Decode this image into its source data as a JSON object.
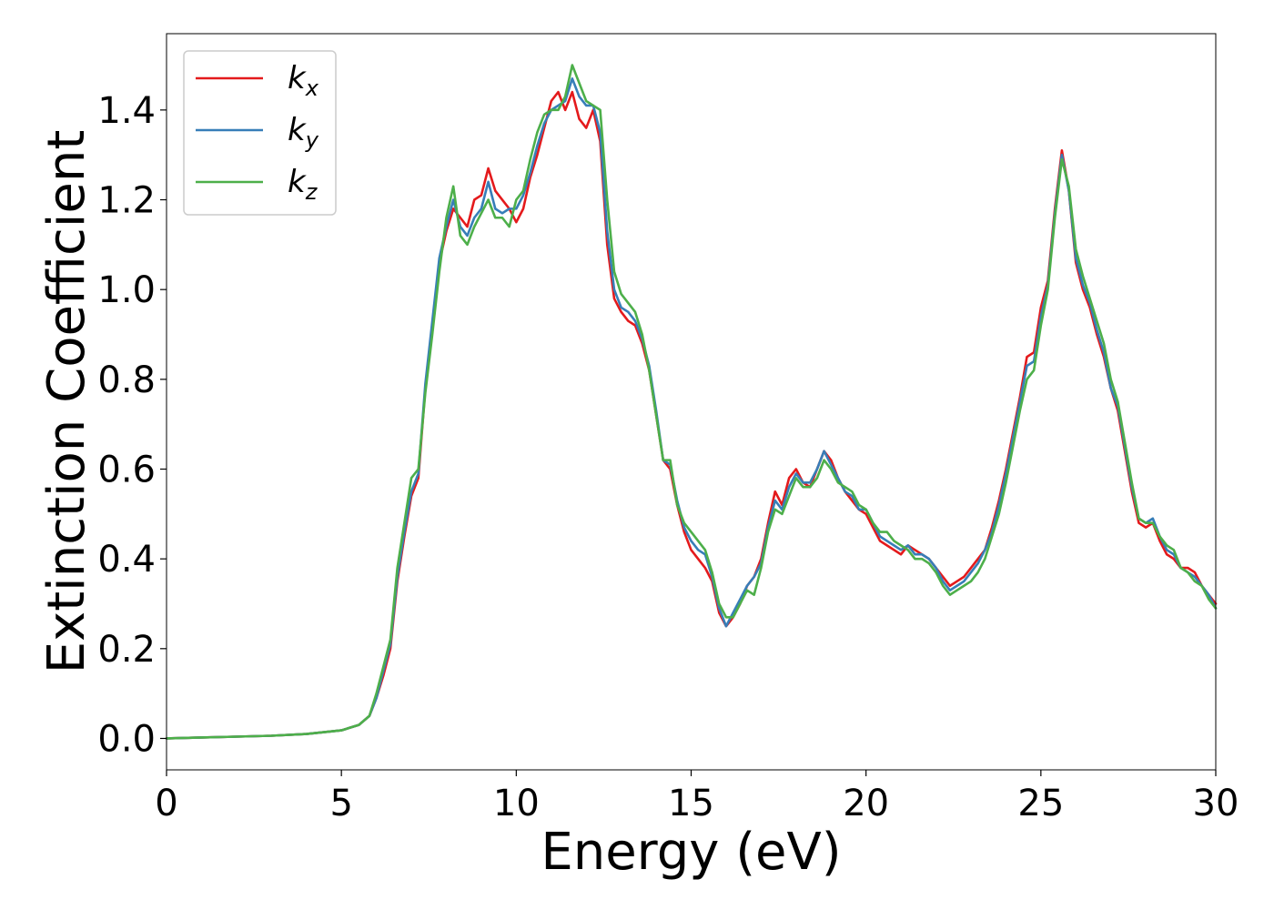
{
  "chart_data": {
    "type": "line",
    "title": "",
    "xlabel": "Energy (eV)",
    "ylabel": "Extinction Coefficient",
    "xlim": [
      0,
      30
    ],
    "ylim": [
      -0.07,
      1.57
    ],
    "xticks": [
      0,
      5,
      10,
      15,
      20,
      25,
      30
    ],
    "xtick_labels": [
      "0",
      "5",
      "10",
      "15",
      "20",
      "25",
      "30"
    ],
    "yticks": [
      0.0,
      0.2,
      0.4,
      0.6,
      0.8,
      1.0,
      1.2,
      1.4
    ],
    "ytick_labels": [
      "0.0",
      "0.2",
      "0.4",
      "0.6",
      "0.8",
      "1.0",
      "1.2",
      "1.4"
    ],
    "grid": false,
    "legend_position": "top-left",
    "series": [
      {
        "name": "k_x",
        "label_main": "k",
        "label_sub": "x",
        "color": "#e41a1c",
        "x": [
          0,
          1,
          2,
          3,
          4,
          5,
          5.5,
          5.8,
          6.0,
          6.2,
          6.4,
          6.6,
          6.8,
          7.0,
          7.2,
          7.4,
          7.6,
          7.8,
          8.0,
          8.2,
          8.4,
          8.6,
          8.8,
          9.0,
          9.2,
          9.4,
          9.6,
          9.8,
          10.0,
          10.2,
          10.4,
          10.6,
          10.8,
          11.0,
          11.2,
          11.4,
          11.6,
          11.8,
          12.0,
          12.2,
          12.4,
          12.6,
          12.8,
          13.0,
          13.2,
          13.4,
          13.6,
          13.8,
          14.0,
          14.2,
          14.4,
          14.6,
          14.8,
          15.0,
          15.2,
          15.4,
          15.6,
          15.8,
          16.0,
          16.2,
          16.4,
          16.6,
          16.8,
          17.0,
          17.2,
          17.4,
          17.6,
          17.8,
          18.0,
          18.2,
          18.4,
          18.6,
          18.8,
          19.0,
          19.2,
          19.4,
          19.6,
          19.8,
          20.0,
          20.2,
          20.4,
          20.6,
          20.8,
          21.0,
          21.2,
          21.4,
          21.6,
          21.8,
          22.0,
          22.2,
          22.4,
          22.6,
          22.8,
          23.0,
          23.2,
          23.4,
          23.6,
          23.8,
          24.0,
          24.2,
          24.4,
          24.6,
          24.8,
          25.0,
          25.2,
          25.4,
          25.6,
          25.8,
          26.0,
          26.2,
          26.4,
          26.6,
          26.8,
          27.0,
          27.2,
          27.4,
          27.6,
          27.8,
          28.0,
          28.2,
          28.4,
          28.6,
          28.8,
          29.0,
          29.2,
          29.4,
          29.6,
          29.8,
          30.0
        ],
        "y": [
          0.0,
          0.002,
          0.004,
          0.006,
          0.01,
          0.018,
          0.03,
          0.05,
          0.09,
          0.14,
          0.2,
          0.35,
          0.45,
          0.54,
          0.58,
          0.78,
          0.92,
          1.06,
          1.13,
          1.18,
          1.16,
          1.14,
          1.2,
          1.21,
          1.27,
          1.22,
          1.2,
          1.18,
          1.15,
          1.18,
          1.25,
          1.3,
          1.36,
          1.42,
          1.44,
          1.4,
          1.44,
          1.38,
          1.36,
          1.4,
          1.33,
          1.1,
          0.98,
          0.95,
          0.93,
          0.92,
          0.88,
          0.82,
          0.72,
          0.62,
          0.6,
          0.52,
          0.46,
          0.42,
          0.4,
          0.38,
          0.35,
          0.28,
          0.25,
          0.27,
          0.3,
          0.34,
          0.36,
          0.4,
          0.48,
          0.55,
          0.52,
          0.58,
          0.6,
          0.57,
          0.56,
          0.6,
          0.64,
          0.62,
          0.58,
          0.55,
          0.53,
          0.51,
          0.5,
          0.47,
          0.44,
          0.43,
          0.42,
          0.41,
          0.43,
          0.42,
          0.41,
          0.4,
          0.38,
          0.36,
          0.34,
          0.35,
          0.36,
          0.38,
          0.4,
          0.42,
          0.47,
          0.53,
          0.6,
          0.68,
          0.76,
          0.85,
          0.86,
          0.96,
          1.02,
          1.18,
          1.31,
          1.22,
          1.06,
          1.0,
          0.96,
          0.9,
          0.85,
          0.78,
          0.73,
          0.64,
          0.55,
          0.48,
          0.47,
          0.48,
          0.44,
          0.41,
          0.4,
          0.38,
          0.38,
          0.37,
          0.34,
          0.32,
          0.3
        ]
      },
      {
        "name": "k_y",
        "label_main": "k",
        "label_sub": "y",
        "color": "#377eb8",
        "x": [
          0,
          1,
          2,
          3,
          4,
          5,
          5.5,
          5.8,
          6.0,
          6.2,
          6.4,
          6.6,
          6.8,
          7.0,
          7.2,
          7.4,
          7.6,
          7.8,
          8.0,
          8.2,
          8.4,
          8.6,
          8.8,
          9.0,
          9.2,
          9.4,
          9.6,
          9.8,
          10.0,
          10.2,
          10.4,
          10.6,
          10.8,
          11.0,
          11.2,
          11.4,
          11.6,
          11.8,
          12.0,
          12.2,
          12.4,
          12.6,
          12.8,
          13.0,
          13.2,
          13.4,
          13.6,
          13.8,
          14.0,
          14.2,
          14.4,
          14.6,
          14.8,
          15.0,
          15.2,
          15.4,
          15.6,
          15.8,
          16.0,
          16.2,
          16.4,
          16.6,
          16.8,
          17.0,
          17.2,
          17.4,
          17.6,
          17.8,
          18.0,
          18.2,
          18.4,
          18.6,
          18.8,
          19.0,
          19.2,
          19.4,
          19.6,
          19.8,
          20.0,
          20.2,
          20.4,
          20.6,
          20.8,
          21.0,
          21.2,
          21.4,
          21.6,
          21.8,
          22.0,
          22.2,
          22.4,
          22.6,
          22.8,
          23.0,
          23.2,
          23.4,
          23.6,
          23.8,
          24.0,
          24.2,
          24.4,
          24.6,
          24.8,
          25.0,
          25.2,
          25.4,
          25.6,
          25.8,
          26.0,
          26.2,
          26.4,
          26.6,
          26.8,
          27.0,
          27.2,
          27.4,
          27.6,
          27.8,
          28.0,
          28.2,
          28.4,
          28.6,
          28.8,
          29.0,
          29.2,
          29.4,
          29.6,
          29.8,
          30.0
        ],
        "y": [
          0.0,
          0.002,
          0.004,
          0.006,
          0.01,
          0.018,
          0.03,
          0.05,
          0.09,
          0.15,
          0.21,
          0.36,
          0.46,
          0.55,
          0.59,
          0.79,
          0.93,
          1.07,
          1.14,
          1.2,
          1.14,
          1.12,
          1.16,
          1.18,
          1.24,
          1.18,
          1.17,
          1.18,
          1.18,
          1.21,
          1.26,
          1.32,
          1.37,
          1.4,
          1.41,
          1.42,
          1.47,
          1.43,
          1.41,
          1.41,
          1.35,
          1.13,
          1.0,
          0.96,
          0.95,
          0.93,
          0.89,
          0.83,
          0.73,
          0.62,
          0.61,
          0.53,
          0.47,
          0.44,
          0.42,
          0.41,
          0.36,
          0.29,
          0.25,
          0.28,
          0.31,
          0.34,
          0.36,
          0.39,
          0.47,
          0.53,
          0.51,
          0.56,
          0.59,
          0.57,
          0.57,
          0.6,
          0.64,
          0.61,
          0.58,
          0.55,
          0.54,
          0.51,
          0.51,
          0.48,
          0.45,
          0.44,
          0.43,
          0.42,
          0.43,
          0.41,
          0.41,
          0.4,
          0.38,
          0.35,
          0.33,
          0.34,
          0.35,
          0.37,
          0.39,
          0.42,
          0.46,
          0.52,
          0.59,
          0.67,
          0.75,
          0.83,
          0.84,
          0.94,
          1.01,
          1.17,
          1.3,
          1.22,
          1.07,
          1.01,
          0.97,
          0.91,
          0.86,
          0.78,
          0.74,
          0.65,
          0.56,
          0.49,
          0.48,
          0.49,
          0.45,
          0.42,
          0.41,
          0.38,
          0.37,
          0.36,
          0.34,
          0.32,
          0.29
        ]
      },
      {
        "name": "k_z",
        "label_main": "k",
        "label_sub": "z",
        "color": "#4daf4a",
        "x": [
          0,
          1,
          2,
          3,
          4,
          5,
          5.5,
          5.8,
          6.0,
          6.2,
          6.4,
          6.6,
          6.8,
          7.0,
          7.2,
          7.4,
          7.6,
          7.8,
          8.0,
          8.2,
          8.4,
          8.6,
          8.8,
          9.0,
          9.2,
          9.4,
          9.6,
          9.8,
          10.0,
          10.2,
          10.4,
          10.6,
          10.8,
          11.0,
          11.2,
          11.4,
          11.6,
          11.8,
          12.0,
          12.2,
          12.4,
          12.6,
          12.8,
          13.0,
          13.2,
          13.4,
          13.6,
          13.8,
          14.0,
          14.2,
          14.4,
          14.6,
          14.8,
          15.0,
          15.2,
          15.4,
          15.6,
          15.8,
          16.0,
          16.2,
          16.4,
          16.6,
          16.8,
          17.0,
          17.2,
          17.4,
          17.6,
          17.8,
          18.0,
          18.2,
          18.4,
          18.6,
          18.8,
          19.0,
          19.2,
          19.4,
          19.6,
          19.8,
          20.0,
          20.2,
          20.4,
          20.6,
          20.8,
          21.0,
          21.2,
          21.4,
          21.6,
          21.8,
          22.0,
          22.2,
          22.4,
          22.6,
          22.8,
          23.0,
          23.2,
          23.4,
          23.6,
          23.8,
          24.0,
          24.2,
          24.4,
          24.6,
          24.8,
          25.0,
          25.2,
          25.4,
          25.6,
          25.8,
          26.0,
          26.2,
          26.4,
          26.6,
          26.8,
          27.0,
          27.2,
          27.4,
          27.6,
          27.8,
          28.0,
          28.2,
          28.4,
          28.6,
          28.8,
          29.0,
          29.2,
          29.4,
          29.6,
          29.8,
          30.0
        ],
        "y": [
          0.0,
          0.002,
          0.004,
          0.006,
          0.01,
          0.018,
          0.03,
          0.05,
          0.1,
          0.16,
          0.22,
          0.38,
          0.48,
          0.58,
          0.6,
          0.77,
          0.9,
          1.04,
          1.16,
          1.23,
          1.12,
          1.1,
          1.14,
          1.17,
          1.2,
          1.16,
          1.16,
          1.14,
          1.2,
          1.22,
          1.29,
          1.35,
          1.39,
          1.4,
          1.4,
          1.43,
          1.5,
          1.46,
          1.42,
          1.41,
          1.4,
          1.2,
          1.04,
          0.99,
          0.97,
          0.95,
          0.9,
          0.82,
          0.72,
          0.62,
          0.62,
          0.52,
          0.48,
          0.46,
          0.44,
          0.42,
          0.37,
          0.3,
          0.27,
          0.27,
          0.3,
          0.33,
          0.32,
          0.38,
          0.46,
          0.51,
          0.5,
          0.54,
          0.58,
          0.56,
          0.56,
          0.58,
          0.62,
          0.6,
          0.57,
          0.56,
          0.55,
          0.52,
          0.51,
          0.48,
          0.46,
          0.46,
          0.44,
          0.43,
          0.42,
          0.4,
          0.4,
          0.39,
          0.37,
          0.34,
          0.32,
          0.33,
          0.34,
          0.35,
          0.37,
          0.4,
          0.45,
          0.5,
          0.57,
          0.65,
          0.73,
          0.8,
          0.82,
          0.92,
          1.0,
          1.16,
          1.29,
          1.23,
          1.09,
          1.03,
          0.98,
          0.93,
          0.88,
          0.8,
          0.75,
          0.66,
          0.57,
          0.49,
          0.48,
          0.48,
          0.45,
          0.43,
          0.42,
          0.38,
          0.37,
          0.35,
          0.34,
          0.31,
          0.29
        ]
      }
    ]
  }
}
